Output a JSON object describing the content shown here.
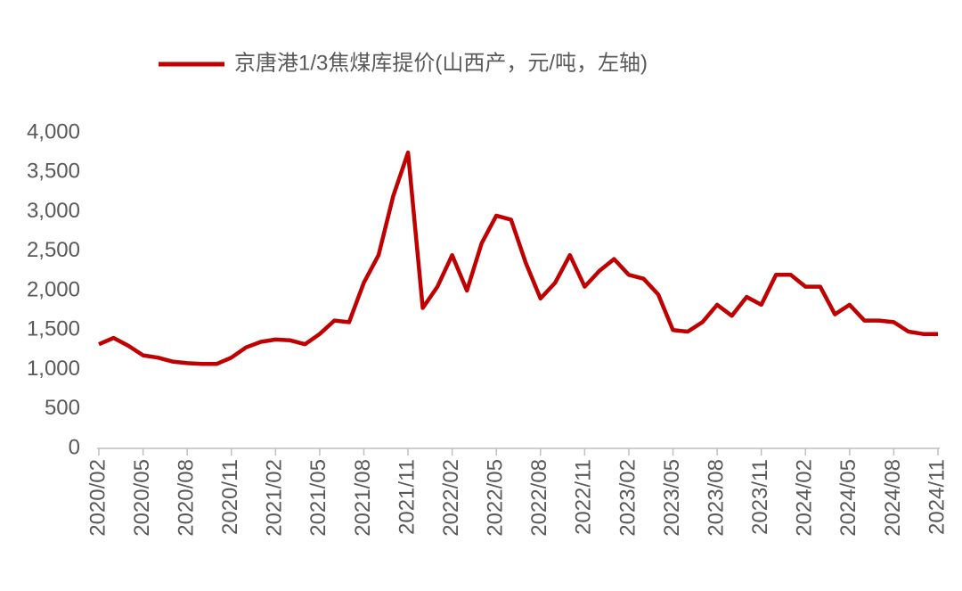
{
  "chart_data": {
    "type": "line",
    "categories": [
      "2020/02",
      null,
      null,
      "2020/05",
      null,
      null,
      "2020/08",
      null,
      null,
      "2020/11",
      null,
      null,
      "2021/02",
      null,
      null,
      "2021/05",
      null,
      null,
      "2021/08",
      null,
      null,
      "2021/11",
      null,
      null,
      "2022/02",
      null,
      null,
      "2022/05",
      null,
      null,
      "2022/08",
      null,
      null,
      "2022/11",
      null,
      null,
      "2023/02",
      null,
      null,
      "2023/05",
      null,
      null,
      "2023/08",
      null,
      null,
      "2023/11",
      null,
      null,
      "2024/02",
      null,
      null,
      "2024/05",
      null,
      null,
      "2024/08",
      null,
      null,
      "2024/11"
    ],
    "series": [
      {
        "name": "京唐港1/3焦煤库提价(山西产，元/吨，左轴)",
        "color": "#c00000",
        "values": [
          1320,
          1400,
          1300,
          1180,
          1150,
          1100,
          1080,
          1070,
          1070,
          1150,
          1280,
          1350,
          1380,
          1370,
          1320,
          1450,
          1620,
          1600,
          2100,
          2450,
          3200,
          3750,
          1780,
          2050,
          2450,
          2000,
          2600,
          2950,
          2900,
          2350,
          1900,
          2100,
          2450,
          2050,
          2250,
          2400,
          2200,
          2150,
          1950,
          1500,
          1480,
          1600,
          1820,
          1680,
          1920,
          1820,
          2200,
          2200,
          2050,
          2050,
          1700,
          1820,
          1620,
          1620,
          1600,
          1480,
          1450,
          1450
        ]
      }
    ],
    "ylim": [
      0,
      4000
    ],
    "yticks": [
      0,
      500,
      {
        "value": 1000,
        "label": "1,000"
      },
      {
        "value": 1500,
        "label": "1,500"
      },
      {
        "value": 2000,
        "label": "2,000"
      },
      {
        "value": 2500,
        "label": "2,500"
      },
      {
        "value": 3000,
        "label": "3,000"
      },
      {
        "value": 3500,
        "label": "3,500"
      },
      {
        "value": 4000,
        "label": "4,000"
      }
    ],
    "grid": false,
    "legend": "top"
  }
}
